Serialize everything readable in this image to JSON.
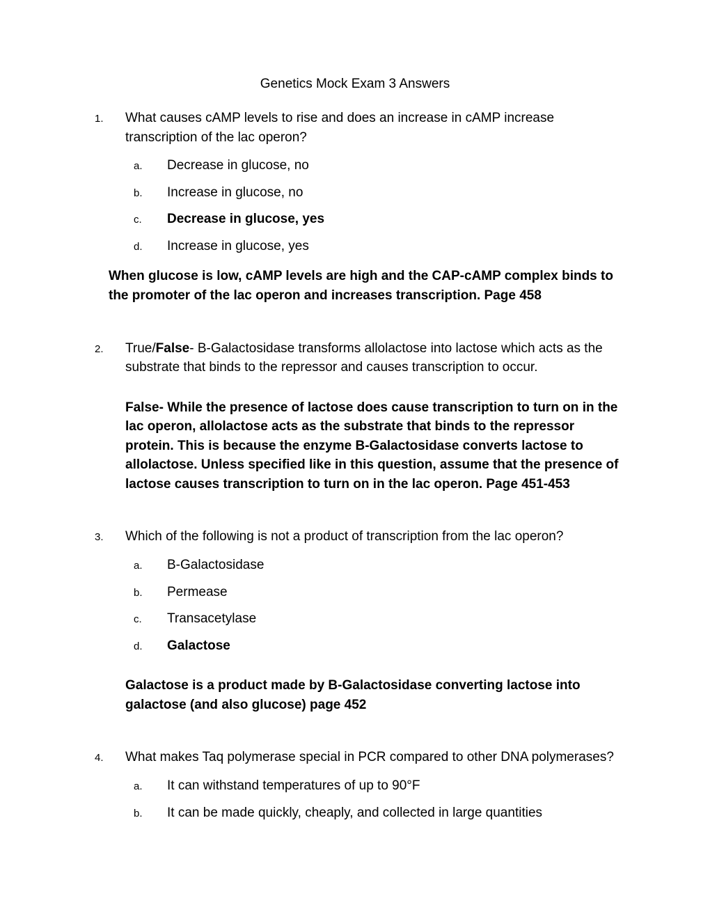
{
  "title": "Genetics Mock Exam 3 Answers",
  "q1": {
    "number": "1.",
    "text": "What causes cAMP levels to rise and does an increase in cAMP increase transcription of the lac operon?",
    "options": {
      "a": {
        "letter": "a.",
        "text": "Decrease in glucose, no"
      },
      "b": {
        "letter": "b.",
        "text": "Increase in glucose, no"
      },
      "c": {
        "letter": "c.",
        "text": "Decrease in glucose, yes"
      },
      "d": {
        "letter": "d.",
        "text": "Increase in glucose, yes"
      }
    },
    "explanation": "When glucose is low, cAMP levels are high and the CAP-cAMP complex binds to the promoter of the lac operon and increases transcription. Page 458"
  },
  "q2": {
    "number": "2.",
    "prefix": "True/",
    "false_bold": "False",
    "text": "- B-Galactosidase transforms allolactose into lactose which acts as the substrate that binds to the repressor and causes transcription to occur.",
    "explanation": "False- While the presence of lactose does cause transcription to turn on in the lac operon, allolactose acts as the substrate that binds to the repressor protein. This is because the enzyme B-Galactosidase converts lactose to allolactose.  Unless specified like in this question, assume that the presence of lactose causes transcription to turn on in the lac operon. Page 451-453"
  },
  "q3": {
    "number": "3.",
    "text": "Which of the following is not a product of transcription from the lac operon?",
    "options": {
      "a": {
        "letter": "a.",
        "text": "B-Galactosidase"
      },
      "b": {
        "letter": "b.",
        "text": "Permease"
      },
      "c": {
        "letter": "c.",
        "text": "Transacetylase"
      },
      "d": {
        "letter": "d.",
        "text": "Galactose"
      }
    },
    "explanation": "Galactose is a product made by B-Galactosidase converting lactose into galactose (and also glucose) page 452"
  },
  "q4": {
    "number": "4.",
    "text": "What makes Taq polymerase special in PCR compared to other DNA polymerases?",
    "options": {
      "a": {
        "letter": "a.",
        "text": "It can withstand temperatures of up to 90°F"
      },
      "b": {
        "letter": "b.",
        "text": "It can be made quickly, cheaply, and collected in large quantities"
      }
    }
  }
}
